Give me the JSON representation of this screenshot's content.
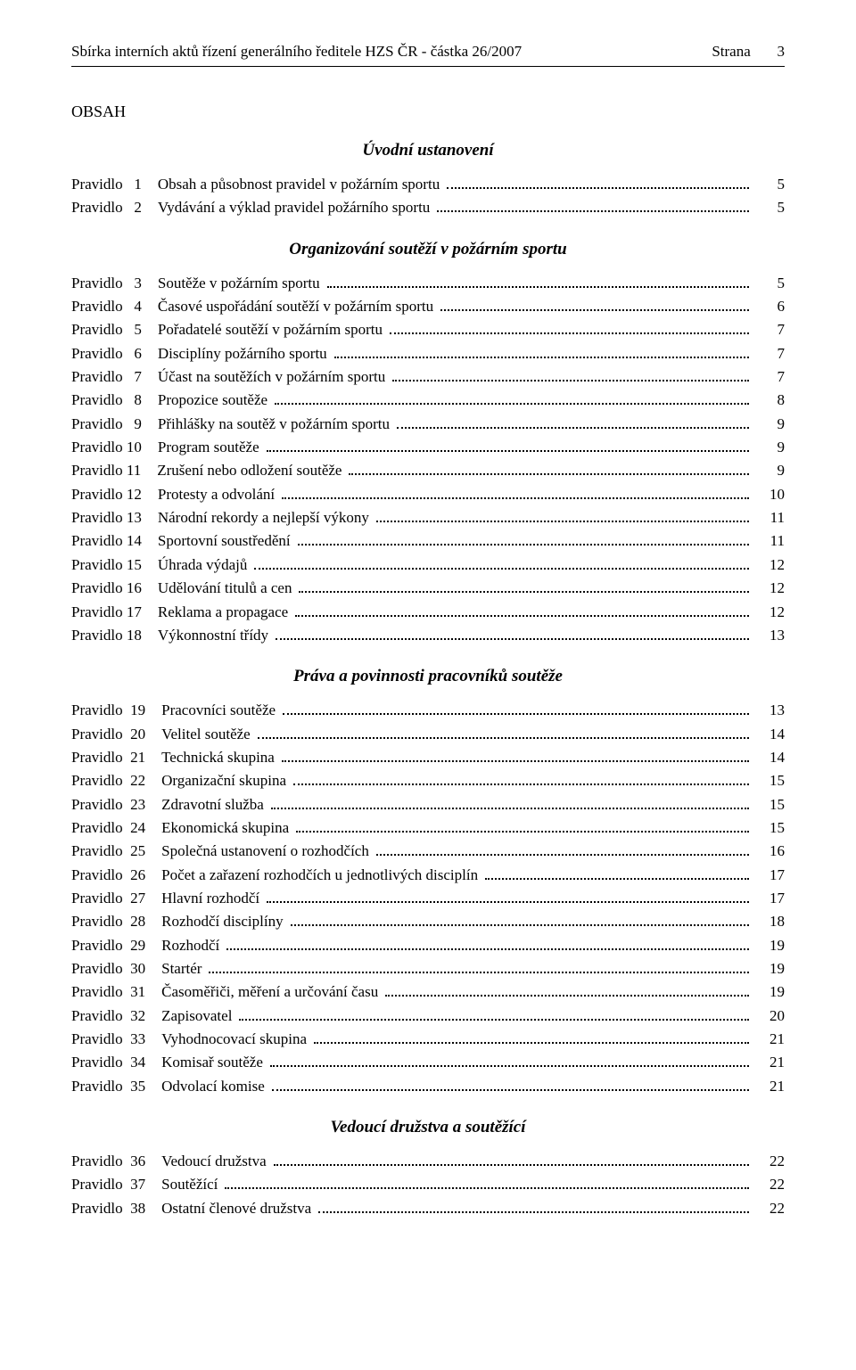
{
  "colors": {
    "text": "#000000",
    "background": "#ffffff",
    "rule": "#000000"
  },
  "typography": {
    "body_fontsize_pt": 12,
    "heading_fontsize_pt": 14,
    "font_family": "Times New Roman"
  },
  "header": {
    "left": "Sbírka interních aktů řízení generálního ředitele HZS ČR - částka 26/2007",
    "right_label": "Strana",
    "page_number": "3"
  },
  "obsah_label": "OBSAH",
  "sections": [
    {
      "heading": "Úvodní ustanovení",
      "rows": [
        {
          "label": "Pravidlo   1",
          "title": "Obsah a působnost pravidel v požárním sportu",
          "page": "5"
        },
        {
          "label": "Pravidlo   2",
          "title": "Vydávání a výklad pravidel požárního sportu",
          "page": "5"
        }
      ]
    },
    {
      "heading": "Organizování soutěží v požárním sportu",
      "rows": [
        {
          "label": "Pravidlo   3",
          "title": "Soutěže v požárním sportu",
          "page": "5"
        },
        {
          "label": "Pravidlo   4",
          "title": "Časové uspořádání soutěží v požárním sportu",
          "page": "6"
        },
        {
          "label": "Pravidlo   5",
          "title": "Pořadatelé soutěží v požárním sportu",
          "page": "7"
        },
        {
          "label": "Pravidlo   6",
          "title": "Disciplíny požárního sportu",
          "page": "7"
        },
        {
          "label": "Pravidlo   7",
          "title": "Účast na soutěžích v požárním sportu",
          "page": "7"
        },
        {
          "label": "Pravidlo   8",
          "title": "Propozice soutěže",
          "page": "8"
        },
        {
          "label": "Pravidlo   9",
          "title": "Přihlášky na soutěž v požárním sportu",
          "page": "9"
        },
        {
          "label": "Pravidlo 10",
          "title": "Program soutěže",
          "page": "9"
        },
        {
          "label": "Pravidlo 11",
          "title": "Zrušení nebo odložení soutěže",
          "page": "9"
        },
        {
          "label": "Pravidlo 12",
          "title": "Protesty a odvolání",
          "page": "10"
        },
        {
          "label": "Pravidlo 13",
          "title": "Národní rekordy a nejlepší výkony",
          "page": "11"
        },
        {
          "label": "Pravidlo 14",
          "title": "Sportovní soustředění",
          "page": "11"
        },
        {
          "label": "Pravidlo 15",
          "title": "Úhrada výdajů",
          "page": "12"
        },
        {
          "label": "Pravidlo 16",
          "title": "Udělování titulů a cen",
          "page": "12"
        },
        {
          "label": "Pravidlo 17",
          "title": "Reklama a propagace",
          "page": "12"
        },
        {
          "label": "Pravidlo 18",
          "title": "Výkonnostní třídy",
          "page": "13"
        }
      ]
    },
    {
      "heading": "Práva a povinnosti pracovníků soutěže",
      "rows": [
        {
          "label": "Pravidlo  19",
          "title": "Pracovníci soutěže",
          "page": "13"
        },
        {
          "label": "Pravidlo  20",
          "title": "Velitel soutěže",
          "page": "14"
        },
        {
          "label": "Pravidlo  21",
          "title": "Technická skupina",
          "page": "14"
        },
        {
          "label": "Pravidlo  22",
          "title": "Organizační skupina",
          "page": "15"
        },
        {
          "label": "Pravidlo  23",
          "title": "Zdravotní  služba",
          "page": "15"
        },
        {
          "label": "Pravidlo  24",
          "title": "Ekonomická skupina",
          "page": "15"
        },
        {
          "label": "Pravidlo  25",
          "title": "Společná ustanovení o rozhodčích",
          "page": "16"
        },
        {
          "label": "Pravidlo  26",
          "title": "Počet a zařazení rozhodčích u jednotlivých disciplín",
          "page": "17"
        },
        {
          "label": "Pravidlo  27",
          "title": "Hlavní rozhodčí",
          "page": "17"
        },
        {
          "label": "Pravidlo  28",
          "title": "Rozhodčí disciplíny",
          "page": "18"
        },
        {
          "label": "Pravidlo  29",
          "title": "Rozhodčí",
          "page": "19"
        },
        {
          "label": "Pravidlo  30",
          "title": "Startér",
          "page": "19"
        },
        {
          "label": "Pravidlo  31",
          "title": "Časoměřiči, měření a určování času",
          "page": "19"
        },
        {
          "label": "Pravidlo  32",
          "title": "Zapisovatel",
          "page": "20"
        },
        {
          "label": "Pravidlo  33",
          "title": "Vyhodnocovací skupina",
          "page": "21"
        },
        {
          "label": "Pravidlo  34",
          "title": "Komisař soutěže",
          "page": "21"
        },
        {
          "label": "Pravidlo  35",
          "title": "Odvolací komise",
          "page": "21"
        }
      ]
    },
    {
      "heading": "Vedoucí družstva  a soutěžící",
      "rows": [
        {
          "label": "Pravidlo  36",
          "title": "Vedoucí družstva",
          "page": "22"
        },
        {
          "label": "Pravidlo  37",
          "title": "Soutěžící",
          "page": "22"
        },
        {
          "label": "Pravidlo  38",
          "title": "Ostatní členové družstva",
          "page": "22"
        }
      ]
    }
  ]
}
